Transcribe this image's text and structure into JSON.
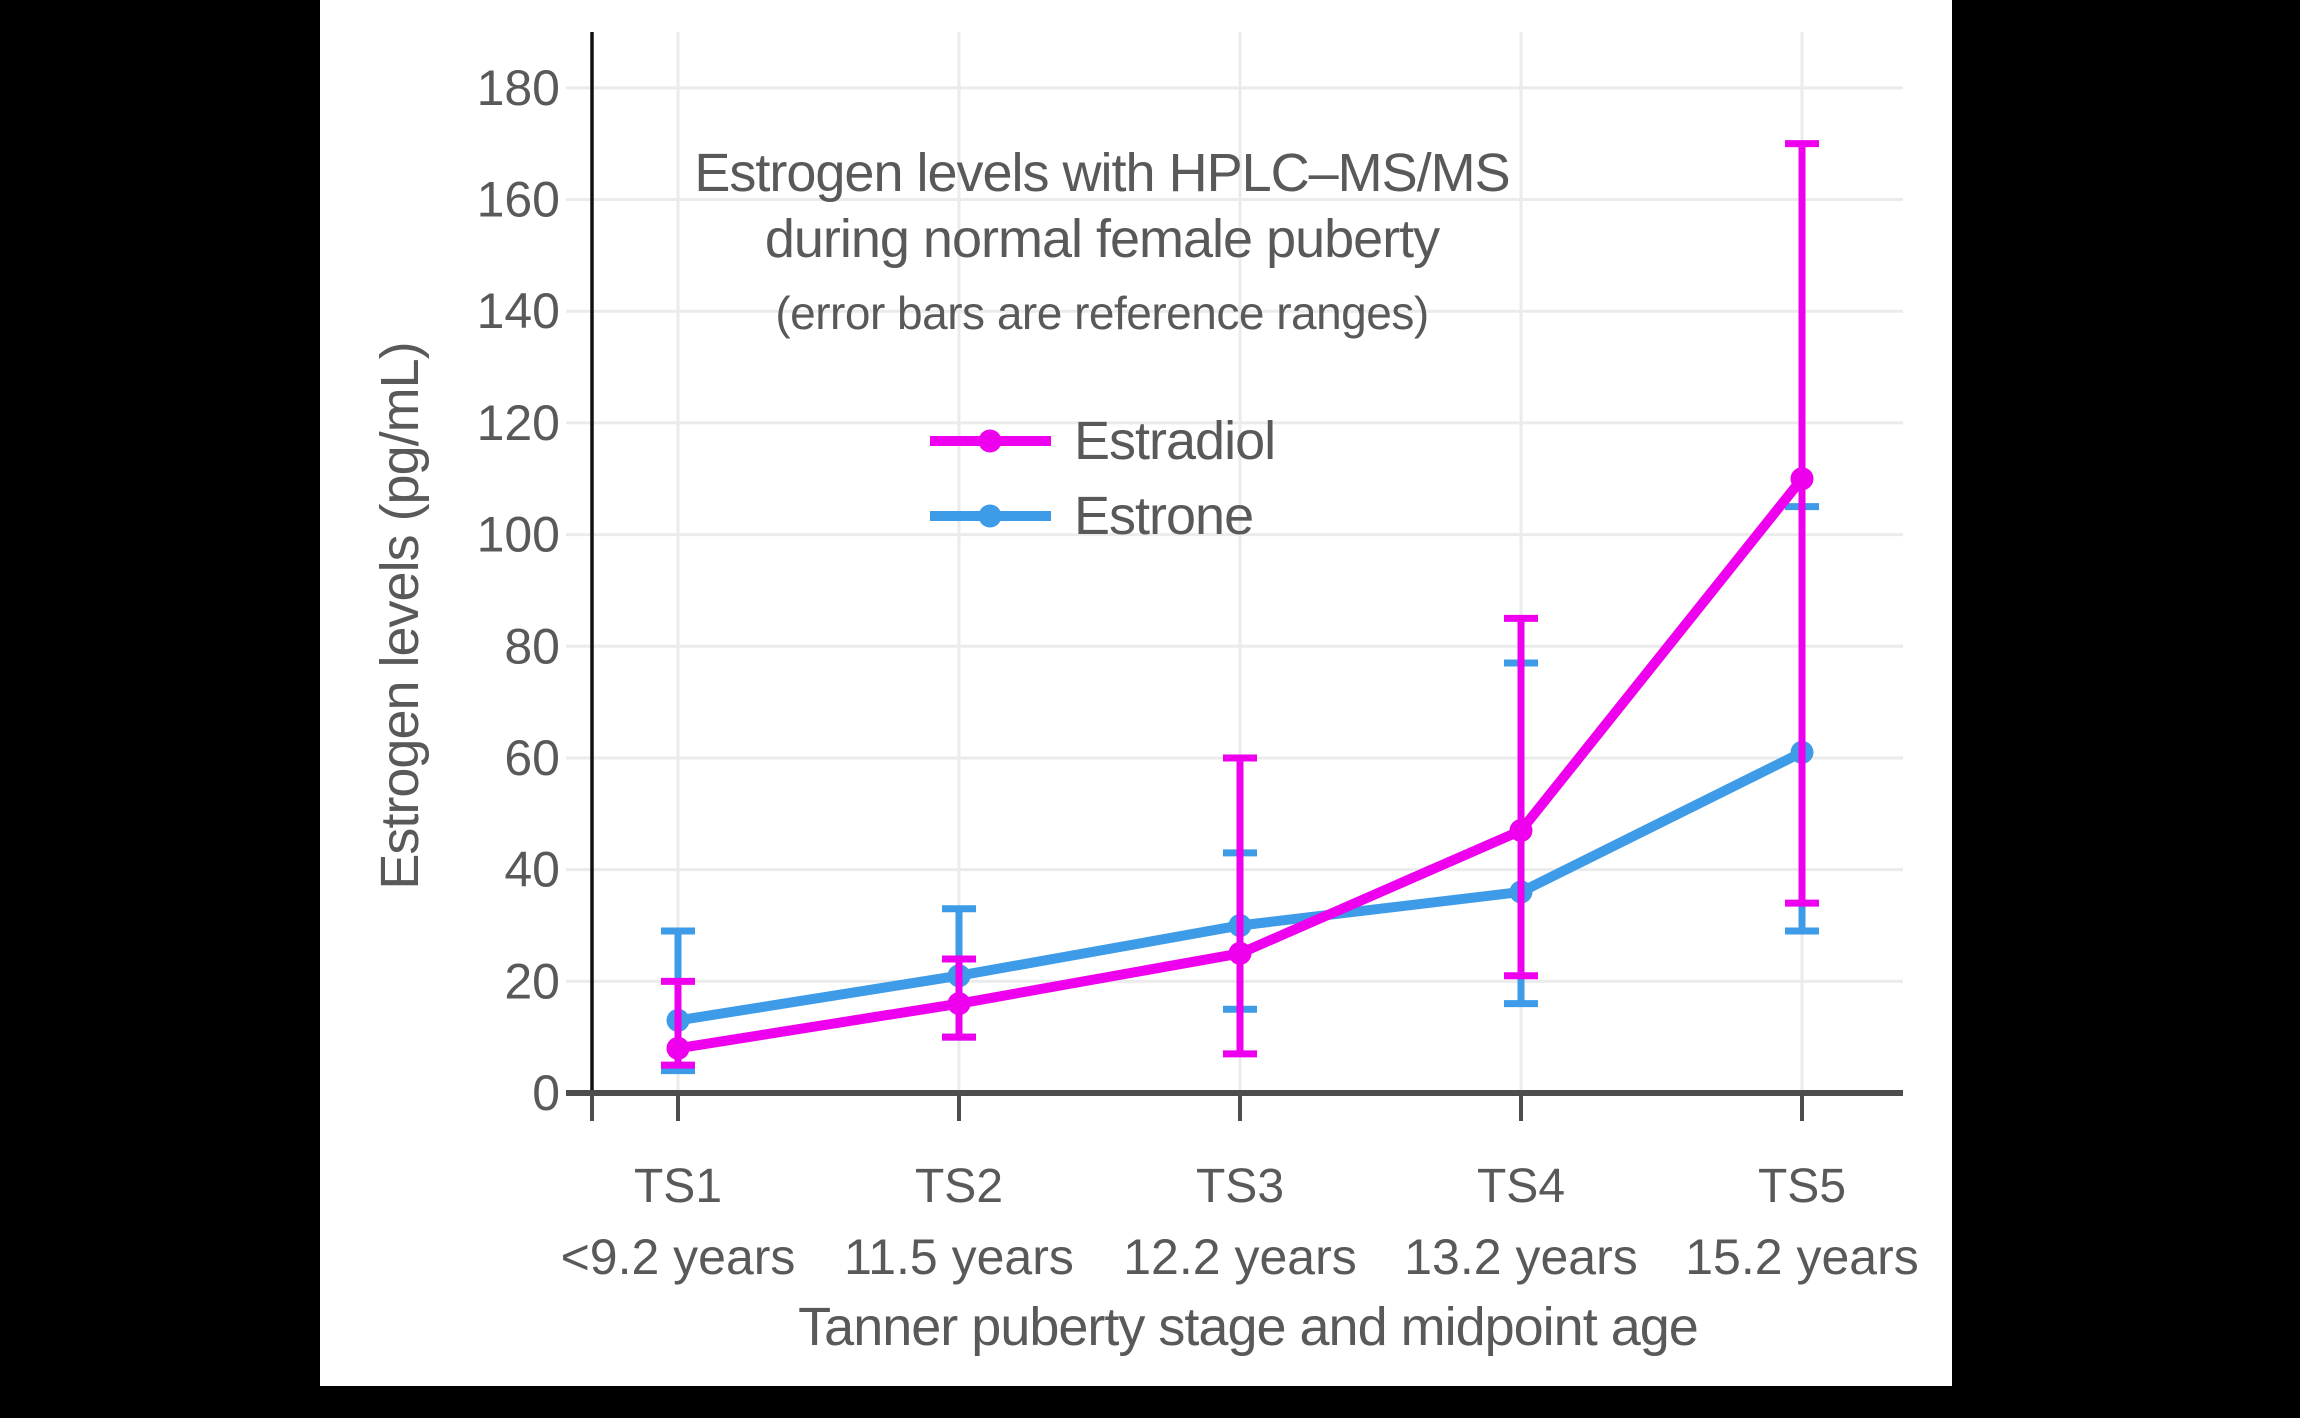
{
  "page": {
    "outer_background": "#000000",
    "canvas_background": "#ffffff"
  },
  "colors": {
    "grid": "#ebebeb",
    "left_spine": "#111111",
    "bottom_axis": "#4d4d4d",
    "tick": "#4d4d4d",
    "text": "#595959"
  },
  "chart_data": {
    "type": "line",
    "title": "Estrogen levels with HPLC–MS/MS",
    "title_line2": "during normal female puberty",
    "subtitle": "(error bars are reference ranges)",
    "xlabel": "Tanner puberty stage and midpoint age",
    "ylabel": "Estrogen levels (pg/mL)",
    "units": "pg/mL",
    "categories": [
      "TS1",
      "TS2",
      "TS3",
      "TS4",
      "TS5"
    ],
    "category_sublabels": [
      "<9.2 years",
      "11.5 years",
      "12.2 years",
      "13.2 years",
      "15.2 years"
    ],
    "y_ticks": [
      0,
      20,
      40,
      60,
      80,
      100,
      120,
      140,
      160,
      180
    ],
    "ylim": [
      0,
      190
    ],
    "grid": true,
    "error_bars": "reference ranges",
    "legend_position": "upper-center-inside",
    "series": [
      {
        "name": "Estradiol",
        "color": "#EE00EE",
        "values": [
          8,
          16,
          25,
          47,
          110
        ],
        "range_low": [
          5,
          10,
          7,
          21,
          34
        ],
        "range_high": [
          20,
          24,
          60,
          85,
          170
        ]
      },
      {
        "name": "Estrone",
        "color": "#3D9BE8",
        "values": [
          13,
          21,
          30,
          36,
          61
        ],
        "range_low": [
          4,
          10,
          15,
          16,
          29
        ],
        "range_high": [
          29,
          33,
          43,
          77,
          105
        ]
      }
    ]
  }
}
